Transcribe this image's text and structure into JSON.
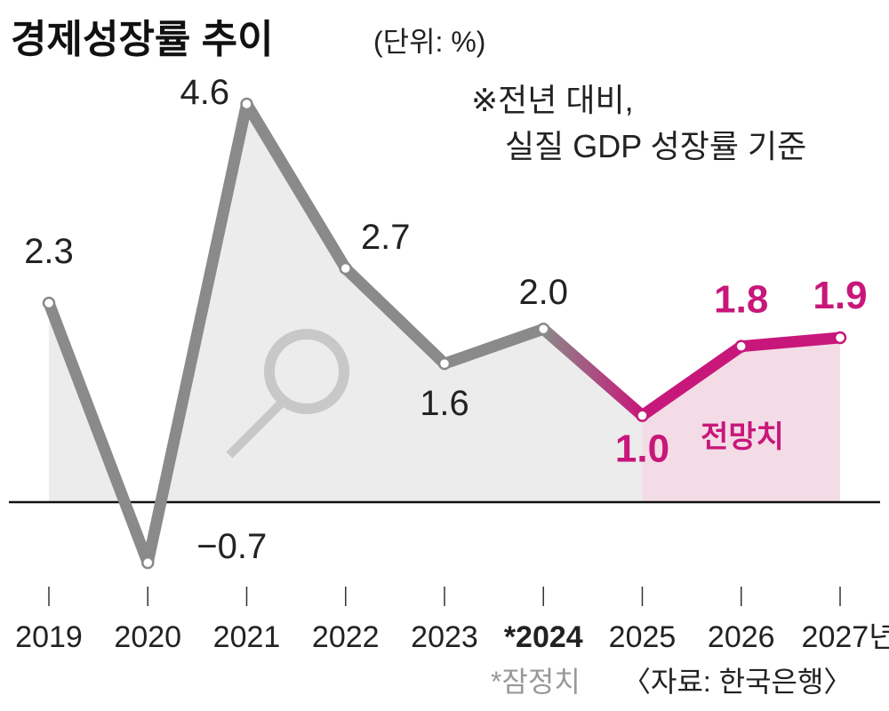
{
  "chart_data": {
    "type": "line",
    "title": "경제성장률 추이",
    "unit": "(단위: %)",
    "note_line1": "※전년 대비,",
    "note_line2": "실질 GDP 성장률 기준",
    "categories": [
      "2019",
      "2020",
      "2021",
      "2022",
      "2023",
      "*2024",
      "2025",
      "2026",
      "2027년"
    ],
    "values": [
      2.3,
      -0.7,
      4.6,
      2.7,
      1.6,
      2.0,
      1.0,
      1.8,
      1.9
    ],
    "value_labels": [
      "2.3",
      "−0.7",
      "4.6",
      "2.7",
      "1.6",
      "2.0",
      "1.0",
      "1.8",
      "1.9"
    ],
    "forecast_start_index": 6,
    "forecast_label": "전망치",
    "provisional_note": "*잠정치",
    "source": "〈자료: 한국은행〉",
    "colors": {
      "actual": "#8a8a8a",
      "forecast": "#c8177a",
      "actual_fill": "#ececec",
      "forecast_fill": "#f3dce6"
    }
  }
}
